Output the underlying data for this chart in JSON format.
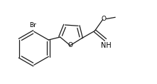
{
  "bg_color": "#ffffff",
  "line_color": "#1a1a1a",
  "text_color": "#000000",
  "font_size": 6.5,
  "line_width": 0.9,
  "label_br": "Br",
  "label_o_furan": "O",
  "label_o_methoxy": "O",
  "label_nh": "NH"
}
